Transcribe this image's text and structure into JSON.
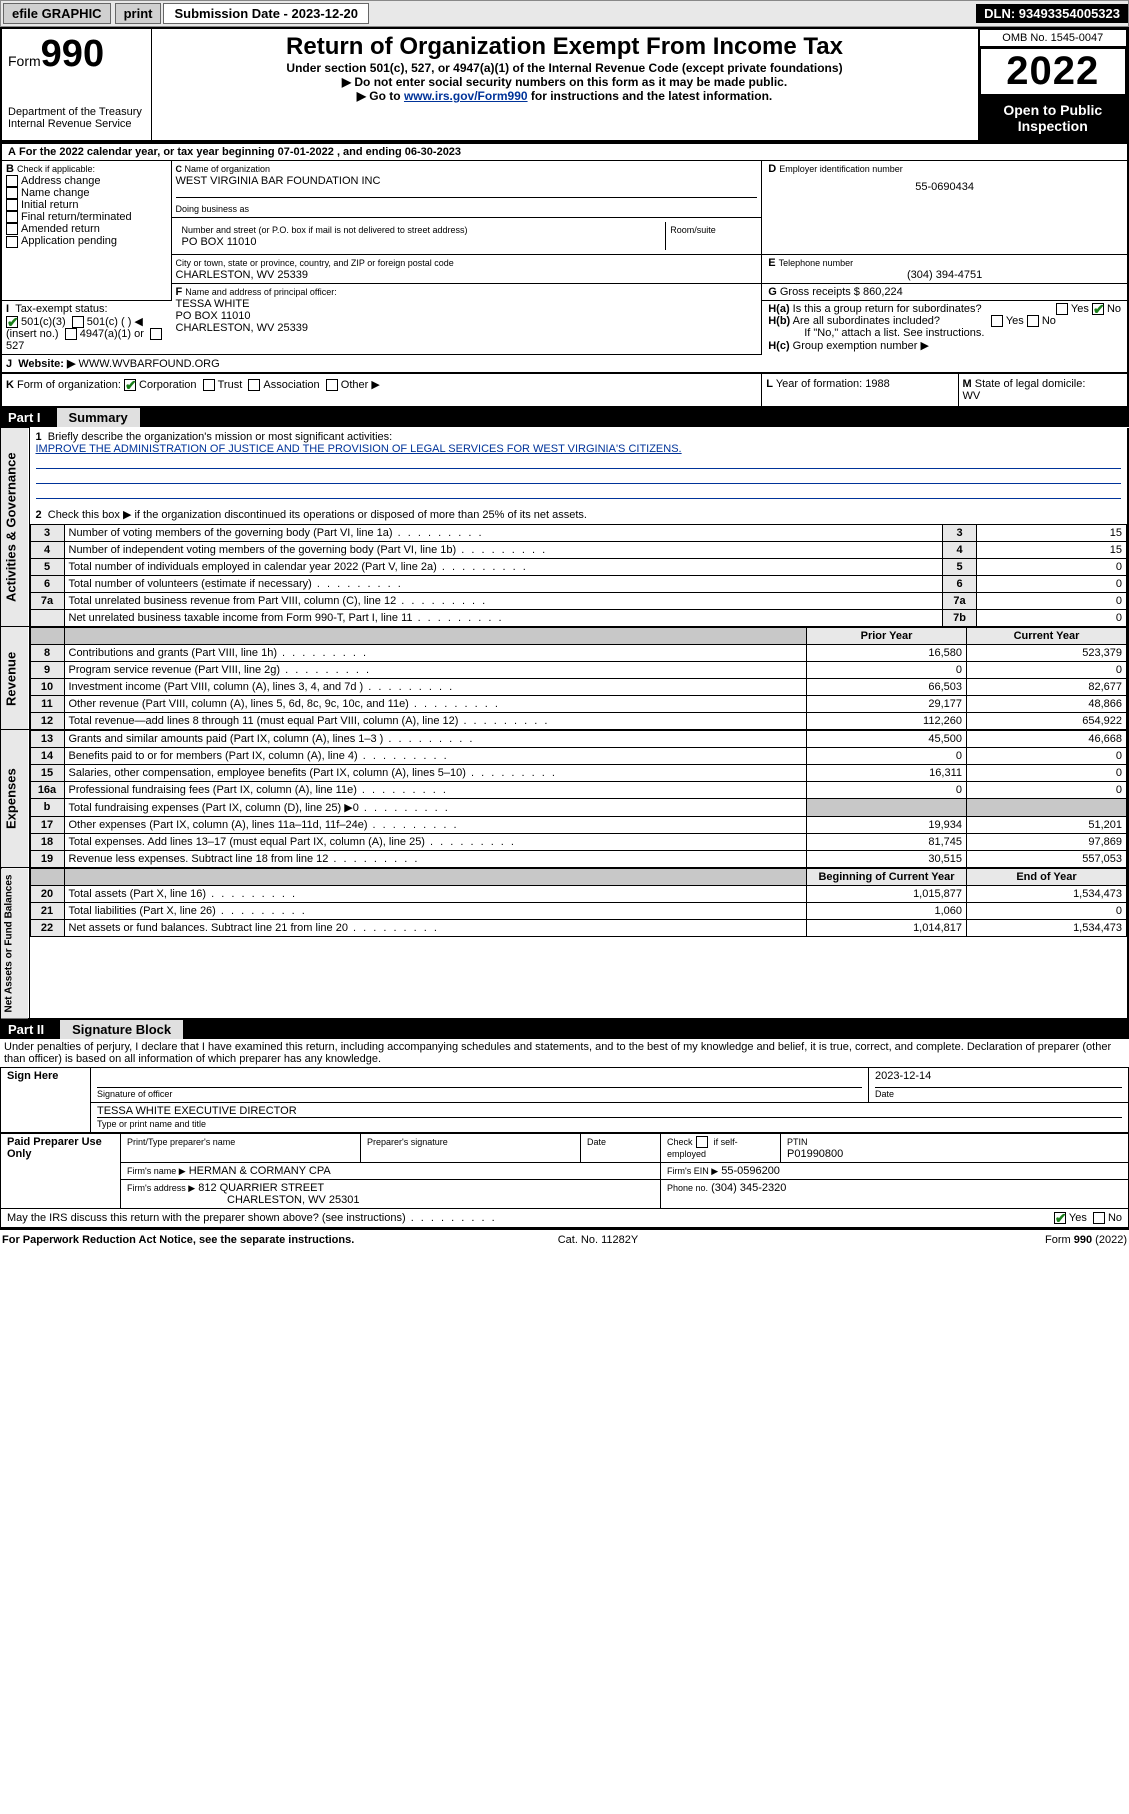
{
  "topbar": {
    "efile": "efile GRAPHIC",
    "print": "print",
    "submission_label": "Submission Date - 2023-12-20",
    "dln": "DLN: 93493354005323"
  },
  "header": {
    "form_small": "Form",
    "form_number": "990",
    "title": "Return of Organization Exempt From Income Tax",
    "subtitle": "Under section 501(c), 527, or 4947(a)(1) of the Internal Revenue Code (except private foundations)",
    "warn": "Do not enter social security numbers on this form as it may be made public.",
    "goto_pre": "Go to ",
    "goto_link": "www.irs.gov/Form990",
    "goto_post": " for instructions and the latest information.",
    "dept": "Department of the Treasury",
    "irs": "Internal Revenue Service",
    "omb": "OMB No. 1545-0047",
    "year": "2022",
    "open": "Open to Public Inspection"
  },
  "periodA": "For the 2022 calendar year, or tax year beginning 07-01-2022     , and ending 06-30-2023",
  "boxB": {
    "label": "Check if applicable:",
    "items": [
      "Address change",
      "Name change",
      "Initial return",
      "Final return/terminated",
      "Amended return",
      "Application pending"
    ]
  },
  "boxC": {
    "name_label": "Name of organization",
    "name": "WEST VIRGINIA BAR FOUNDATION INC",
    "dba_label": "Doing business as",
    "street_label": "Number and street (or P.O. box if mail is not delivered to street address)",
    "room_label": "Room/suite",
    "street": "PO BOX 11010",
    "city_label": "City or town, state or province, country, and ZIP or foreign postal code",
    "city": "CHARLESTON, WV  25339"
  },
  "boxD": {
    "label": "Employer identification number",
    "val": "55-0690434"
  },
  "boxE": {
    "label": "Telephone number",
    "val": "(304) 394-4751"
  },
  "boxG": {
    "label": "Gross receipts $",
    "val": "860,224"
  },
  "boxF": {
    "label": "Name and address of principal officer:",
    "name": "TESSA WHITE",
    "street": "PO BOX 11010",
    "city": "CHARLESTON, WV  25339"
  },
  "boxH": {
    "a": "Is this a group return for subordinates?",
    "a_no": "No",
    "b": "Are all subordinates included?",
    "b_note": "If \"No,\" attach a list. See instructions.",
    "c": "Group exemption number ▶"
  },
  "taxexempt": {
    "label": "Tax-exempt status:",
    "c3": "501(c)(3)",
    "c": "501(c) (   ) ◀ (insert no.)",
    "a1": "4947(a)(1) or",
    "s527": "527"
  },
  "website": {
    "label": "Website: ▶",
    "val": "WWW.WVBARFOUND.ORG"
  },
  "boxK": {
    "label": "Form of organization:",
    "opts": [
      "Corporation",
      "Trust",
      "Association",
      "Other ▶"
    ]
  },
  "boxL": {
    "label": "Year of formation:",
    "val": "1988"
  },
  "boxM": {
    "label": "State of legal domicile:",
    "val": "WV"
  },
  "part1": {
    "num": "Part I",
    "title": "Summary"
  },
  "mission_label": "Briefly describe the organization's mission or most significant activities:",
  "mission": "IMPROVE THE ADMINISTRATION OF JUSTICE AND THE PROVISION OF LEGAL SERVICES FOR WEST VIRGINIA'S CITIZENS.",
  "line2": "Check this box ▶        if the organization discontinued its operations or disposed of more than 25% of its net assets.",
  "gov_rows": [
    {
      "n": "3",
      "t": "Number of voting members of the governing body (Part VI, line 1a)",
      "c": "3",
      "v": "15"
    },
    {
      "n": "4",
      "t": "Number of independent voting members of the governing body (Part VI, line 1b)",
      "c": "4",
      "v": "15"
    },
    {
      "n": "5",
      "t": "Total number of individuals employed in calendar year 2022 (Part V, line 2a)",
      "c": "5",
      "v": "0"
    },
    {
      "n": "6",
      "t": "Total number of volunteers (estimate if necessary)",
      "c": "6",
      "v": "0"
    },
    {
      "n": "7a",
      "t": "Total unrelated business revenue from Part VIII, column (C), line 12",
      "c": "7a",
      "v": "0"
    },
    {
      "n": "",
      "t": "Net unrelated business taxable income from Form 990-T, Part I, line 11",
      "c": "7b",
      "v": "0"
    }
  ],
  "col_hdr": {
    "prior": "Prior Year",
    "current": "Current Year",
    "beg": "Beginning of Current Year",
    "end": "End of Year"
  },
  "rev_rows": [
    {
      "n": "8",
      "t": "Contributions and grants (Part VIII, line 1h)",
      "p": "16,580",
      "c": "523,379"
    },
    {
      "n": "9",
      "t": "Program service revenue (Part VIII, line 2g)",
      "p": "0",
      "c": "0"
    },
    {
      "n": "10",
      "t": "Investment income (Part VIII, column (A), lines 3, 4, and 7d )",
      "p": "66,503",
      "c": "82,677"
    },
    {
      "n": "11",
      "t": "Other revenue (Part VIII, column (A), lines 5, 6d, 8c, 9c, 10c, and 11e)",
      "p": "29,177",
      "c": "48,866"
    },
    {
      "n": "12",
      "t": "Total revenue—add lines 8 through 11 (must equal Part VIII, column (A), line 12)",
      "p": "112,260",
      "c": "654,922"
    }
  ],
  "exp_rows": [
    {
      "n": "13",
      "t": "Grants and similar amounts paid (Part IX, column (A), lines 1–3 )",
      "p": "45,500",
      "c": "46,668"
    },
    {
      "n": "14",
      "t": "Benefits paid to or for members (Part IX, column (A), line 4)",
      "p": "0",
      "c": "0"
    },
    {
      "n": "15",
      "t": "Salaries, other compensation, employee benefits (Part IX, column (A), lines 5–10)",
      "p": "16,311",
      "c": "0"
    },
    {
      "n": "16a",
      "t": "Professional fundraising fees (Part IX, column (A), line 11e)",
      "p": "0",
      "c": "0"
    },
    {
      "n": "b",
      "t": "Total fundraising expenses (Part IX, column (D), line 25) ▶0",
      "p": "",
      "c": "",
      "shade": true
    },
    {
      "n": "17",
      "t": "Other expenses (Part IX, column (A), lines 11a–11d, 11f–24e)",
      "p": "19,934",
      "c": "51,201"
    },
    {
      "n": "18",
      "t": "Total expenses. Add lines 13–17 (must equal Part IX, column (A), line 25)",
      "p": "81,745",
      "c": "97,869"
    },
    {
      "n": "19",
      "t": "Revenue less expenses. Subtract line 18 from line 12",
      "p": "30,515",
      "c": "557,053"
    }
  ],
  "bal_rows": [
    {
      "n": "20",
      "t": "Total assets (Part X, line 16)",
      "p": "1,015,877",
      "c": "1,534,473"
    },
    {
      "n": "21",
      "t": "Total liabilities (Part X, line 26)",
      "p": "1,060",
      "c": "0"
    },
    {
      "n": "22",
      "t": "Net assets or fund balances. Subtract line 21 from line 20",
      "p": "1,014,817",
      "c": "1,534,473"
    }
  ],
  "vert": {
    "gov": "Activities & Governance",
    "rev": "Revenue",
    "exp": "Expenses",
    "bal": "Net Assets or Fund Balances"
  },
  "part2": {
    "num": "Part II",
    "title": "Signature Block"
  },
  "penalties": "Under penalties of perjury, I declare that I have examined this return, including accompanying schedules and statements, and to the best of my knowledge and belief, it is true, correct, and complete. Declaration of preparer (other than officer) is based on all information of which preparer has any knowledge.",
  "sign": {
    "here": "Sign Here",
    "sig_of_officer": "Signature of officer",
    "date": "Date",
    "date_val": "2023-12-14",
    "name_title": "TESSA WHITE  EXECUTIVE DIRECTOR",
    "name_title_label": "Type or print name and title"
  },
  "paid": {
    "title": "Paid Preparer Use Only",
    "c1": "Print/Type preparer's name",
    "c2": "Preparer's signature",
    "c3": "Date",
    "c4a": "Check",
    "c4b": "if self-employed",
    "ptin_l": "PTIN",
    "ptin": "P01990800",
    "firm_name_l": "Firm's name   ▶",
    "firm_name": "HERMAN & CORMANY CPA",
    "firm_ein_l": "Firm's EIN ▶",
    "firm_ein": "55-0596200",
    "firm_addr_l": "Firm's address ▶",
    "firm_addr1": "812 QUARRIER STREET",
    "firm_addr2": "CHARLESTON, WV  25301",
    "phone_l": "Phone no.",
    "phone": "(304) 345-2320"
  },
  "discuss": "May the IRS discuss this return with the preparer shown above? (see instructions)",
  "footer": {
    "paperwork": "For Paperwork Reduction Act Notice, see the separate instructions.",
    "cat": "Cat. No. 11282Y",
    "form": "Form 990 (2022)"
  }
}
